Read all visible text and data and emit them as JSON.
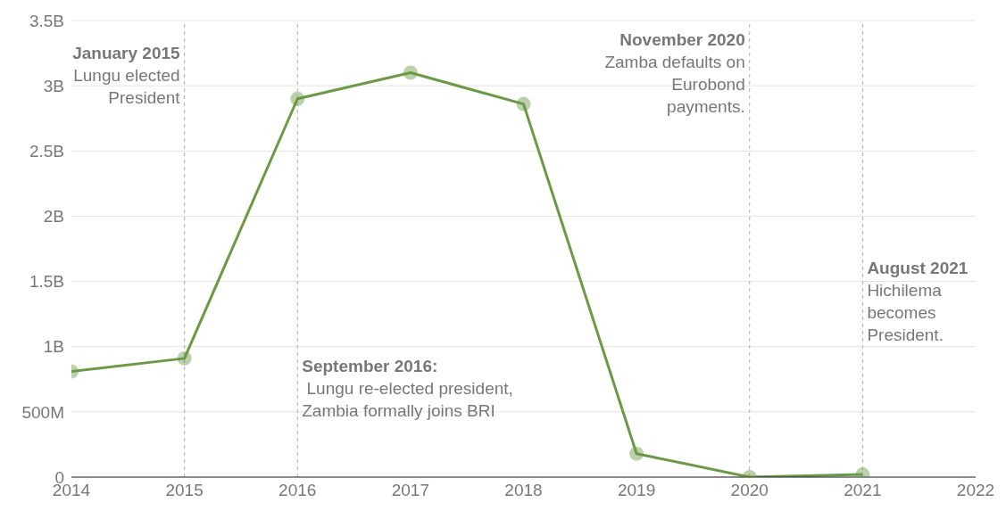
{
  "chart_data": {
    "type": "line",
    "x": [
      2014,
      2015,
      2016,
      2017,
      2018,
      2019,
      2020,
      2021
    ],
    "series": [
      {
        "color": "#6b9a45",
        "values": [
          810000000,
          910000000,
          2900000000,
          3100000000,
          2860000000,
          180000000,
          0,
          20000000
        ]
      }
    ],
    "xlim": [
      2014,
      2022
    ],
    "xticks": [
      2014,
      2015,
      2016,
      2017,
      2018,
      2019,
      2020,
      2021,
      2022
    ],
    "ylim": [
      0,
      3500000000
    ],
    "yticks": [
      0,
      {
        "value": 500000000,
        "label": "500M"
      },
      {
        "value": 1000000000,
        "label": "1B"
      },
      {
        "value": 1500000000,
        "label": "1.5B"
      },
      {
        "value": 2000000000,
        "label": "2B"
      },
      {
        "value": 2500000000,
        "label": "2.5B"
      },
      {
        "value": 3000000000,
        "label": "3B"
      },
      {
        "value": 3500000000,
        "label": "3.5B"
      }
    ],
    "grid": "y",
    "marker": "circle",
    "line_style": "solid",
    "ref_lines": [
      {
        "axis": "x",
        "value": 2015,
        "color": "#aaaaaa",
        "line_style": "dashed"
      },
      {
        "axis": "x",
        "value": 2016,
        "color": "#aaaaaa",
        "line_style": "dashed"
      },
      {
        "axis": "x",
        "value": 2020,
        "color": "#aaaaaa",
        "line_style": "dashed"
      },
      {
        "axis": "x",
        "value": 2021,
        "color": "#aaaaaa",
        "line_style": "dashed"
      }
    ],
    "annotations": [
      {
        "text": "January 2015\nLungu elected\nPresident",
        "x": 2015,
        "y": 3330000000
      },
      {
        "text": "September 2016:\n Lungu re-elected president,\nZambia formally joins BRI",
        "x": 2016,
        "y": 930000000
      },
      {
        "text": "November 2020\nZamba defaults on\nEurobond\npayments.",
        "x": 2020,
        "y": 3430000000
      },
      {
        "text": "August 2021\nHichilema\nbecomes\nPresident.",
        "x": 2021,
        "y": 1680000000
      }
    ]
  }
}
